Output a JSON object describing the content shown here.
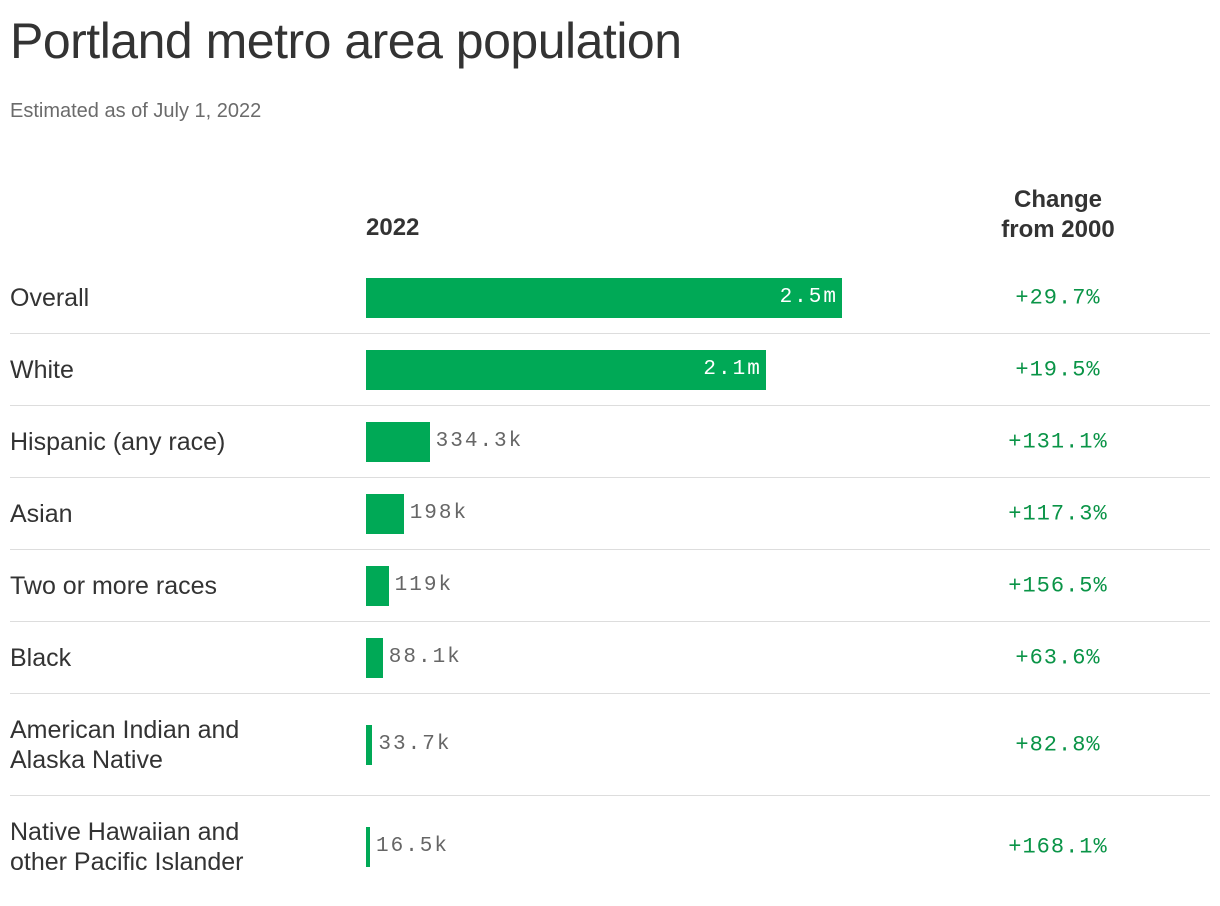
{
  "title": "Portland metro area population",
  "subtitle": "Estimated as of July 1, 2022",
  "chart_data": {
    "type": "bar",
    "title": "Portland metro area population",
    "subtitle": "Estimated as of July 1, 2022",
    "column_headers": {
      "value": "2022",
      "change": "Change from 2000"
    },
    "categories": [
      "Overall",
      "White",
      "Hispanic (any race)",
      "Asian",
      "Two or more races",
      "Black",
      "American Indian and Alaska Native",
      "Native Hawaiian and other Pacific Islander"
    ],
    "values": [
      2500000,
      2100000,
      334300,
      198000,
      119000,
      88100,
      33700,
      16500
    ],
    "value_labels": [
      "2.5m",
      "2.1m",
      "334.3k",
      "198k",
      "119k",
      "88.1k",
      "33.7k",
      "16.5k"
    ],
    "change_labels": [
      "+29.7%",
      "+19.5%",
      "+131.1%",
      "+117.3%",
      "+156.5%",
      "+63.6%",
      "+82.8%",
      "+168.1%"
    ],
    "bar_color": "#00a956",
    "change_color": "#0a9447"
  }
}
